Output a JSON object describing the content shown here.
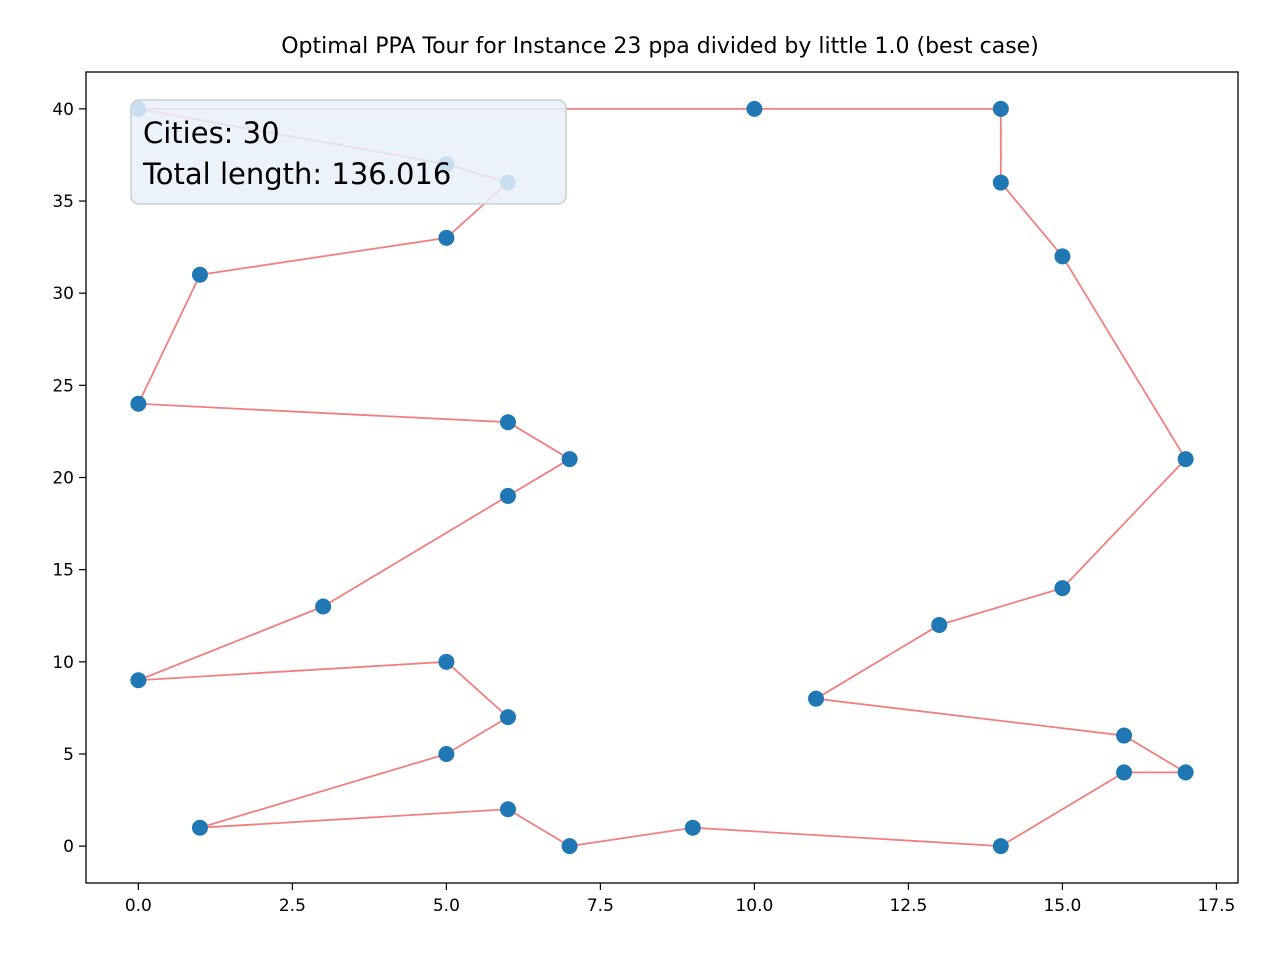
{
  "chart_data": {
    "type": "scatter",
    "title": "Optimal PPA Tour for Instance 23 ppa divided by little 1.0 (best case)",
    "xlabel": "",
    "ylabel": "",
    "xlim": [
      -0.85,
      17.85
    ],
    "ylim": [
      -2,
      42
    ],
    "x_ticks": [
      0.0,
      2.5,
      5.0,
      7.5,
      10.0,
      12.5,
      15.0,
      17.5
    ],
    "x_tick_labels": [
      "0.0",
      "2.5",
      "5.0",
      "7.5",
      "10.0",
      "12.5",
      "15.0",
      "17.5"
    ],
    "y_ticks": [
      0,
      5,
      10,
      15,
      20,
      25,
      30,
      35,
      40
    ],
    "y_tick_labels": [
      "0",
      "5",
      "10",
      "15",
      "20",
      "25",
      "30",
      "35",
      "40"
    ],
    "grid": false,
    "annotation": {
      "line1": "Cities: 30",
      "line2": "Total length: 136.016"
    },
    "colors": {
      "points": "#1f77b4",
      "tour": "#f08080",
      "annotation_bg": "#e8f0f8",
      "annotation_border": "#c8d0d8"
    },
    "tour": [
      [
        0,
        40
      ],
      [
        10,
        40
      ],
      [
        14,
        40
      ],
      [
        14,
        36
      ],
      [
        15,
        32
      ],
      [
        17,
        21
      ],
      [
        15,
        14
      ],
      [
        13,
        12
      ],
      [
        11,
        8
      ],
      [
        16,
        6
      ],
      [
        17,
        4
      ],
      [
        16,
        4
      ],
      [
        14,
        0
      ],
      [
        9,
        1
      ],
      [
        7,
        0
      ],
      [
        6,
        2
      ],
      [
        1,
        1
      ],
      [
        5,
        5
      ],
      [
        6,
        7
      ],
      [
        5,
        10
      ],
      [
        0,
        9
      ],
      [
        3,
        13
      ],
      [
        6,
        19
      ],
      [
        7,
        21
      ],
      [
        6,
        23
      ],
      [
        0,
        24
      ],
      [
        1,
        31
      ],
      [
        5,
        33
      ],
      [
        6,
        36
      ],
      [
        5,
        37
      ],
      [
        0,
        40
      ]
    ]
  }
}
